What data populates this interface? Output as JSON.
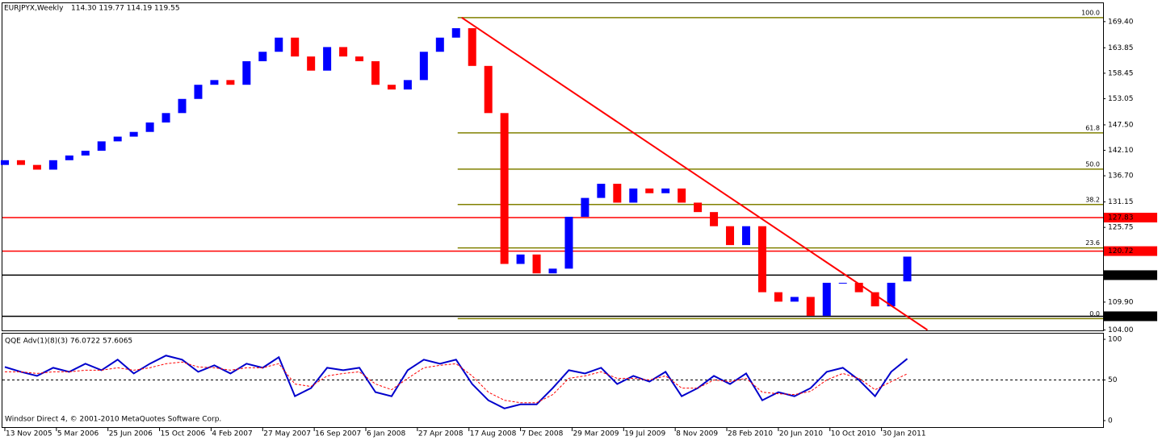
{
  "chart_data": [
    {
      "type": "candlestick",
      "title": "EURJPYX,Weekly",
      "subtitle": "114.30 119.77 114.19 119.55",
      "x": [
        0,
        5,
        10,
        15,
        20,
        25,
        30,
        35,
        40,
        45,
        50,
        55,
        60,
        65,
        70,
        75,
        80,
        85,
        90,
        95,
        100,
        105,
        110,
        115,
        120,
        125,
        130,
        135,
        140,
        145,
        150,
        155,
        160,
        165,
        170,
        175,
        180,
        185,
        190,
        195,
        200,
        205,
        210,
        215,
        220,
        225,
        230,
        235,
        240,
        245,
        250,
        255,
        260,
        265,
        270,
        275,
        280
      ],
      "open": [
        139,
        140,
        139,
        138,
        140,
        141,
        142,
        144,
        145,
        146,
        148,
        150,
        153,
        156,
        157,
        156,
        161,
        163,
        166,
        162,
        159,
        164,
        162,
        161,
        156,
        155,
        157,
        163,
        166,
        168,
        160,
        150,
        118,
        120,
        116,
        117,
        128,
        132,
        135,
        131,
        134,
        133,
        134,
        131,
        129,
        126,
        122,
        126,
        112,
        110,
        111,
        107,
        114,
        114,
        112,
        109,
        114.3
      ],
      "close": [
        140,
        139,
        138,
        140,
        141,
        142,
        144,
        145,
        146,
        148,
        150,
        153,
        156,
        157,
        156,
        161,
        163,
        166,
        162,
        159,
        164,
        162,
        161,
        156,
        155,
        157,
        163,
        166,
        168,
        160,
        150,
        118,
        120,
        116,
        117,
        128,
        132,
        135,
        131,
        134,
        133,
        134,
        131,
        129,
        126,
        122,
        126,
        112,
        110,
        111,
        107,
        114,
        114,
        112,
        109,
        114,
        119.55
      ],
      "up_color": "#0000ff",
      "down_color": "#ff0000",
      "xlim": [
        -0.75,
        340.75
      ],
      "xticks": [
        {
          "value": 0,
          "label": "13 Nov 2005"
        },
        {
          "value": 16,
          "label": "5 Mar 2006"
        },
        {
          "value": 32,
          "label": "25 Jun 2006"
        },
        {
          "value": 48,
          "label": "15 Oct 2006"
        },
        {
          "value": 64,
          "label": "4 Feb 2007"
        },
        {
          "value": 80,
          "label": "27 May 2007"
        },
        {
          "value": 96,
          "label": "16 Sep 2007"
        },
        {
          "value": 112,
          "label": "6 Jan 2008"
        },
        {
          "value": 128,
          "label": "27 Apr 2008"
        },
        {
          "value": 144,
          "label": "17 Aug 2008"
        },
        {
          "value": 160,
          "label": "7 Dec 2008"
        },
        {
          "value": 176,
          "label": "29 Mar 2009"
        },
        {
          "value": 192,
          "label": "19 Jul 2009"
        },
        {
          "value": 208,
          "label": "8 Nov 2009"
        },
        {
          "value": 224,
          "label": "28 Feb 2010"
        },
        {
          "value": 240,
          "label": "20 Jun 2010"
        },
        {
          "value": 256,
          "label": "10 Oct 2010"
        },
        {
          "value": 272,
          "label": "30 Jan 2011"
        }
      ],
      "ylim": [
        103.9,
        173.3
      ],
      "yticks": [
        {
          "value": 169.4,
          "label": "169.40"
        },
        163.85,
        158.45,
        153.05,
        {
          "value": 147.5,
          "label": "147.50"
        },
        {
          "value": 142.1,
          "label": "142.10"
        },
        {
          "value": 136.7,
          "label": "136.70"
        },
        131.15,
        125.75,
        {
          "value": 109.9,
          "label": "109.90"
        },
        {
          "value": 104,
          "label": "104.00"
        }
      ],
      "levels": [
        127.83,
        120.72,
        115.62,
        {
          "value": 106.9,
          "label": "106.90"
        }
      ],
      "level_colors": [
        "#ff0000",
        "#ff0000",
        "#000000",
        "#000000"
      ],
      "fib_start": 140.5,
      "fib_color": "#808000",
      "fib_levels": [
        {
          "value": 170.25,
          "label": "100.0"
        },
        {
          "value": 145.8,
          "label": "61.8"
        },
        {
          "value": 138.1,
          "label": "50.0"
        },
        {
          "value": 130.6,
          "label": "38.2"
        },
        {
          "value": 121.4,
          "label": "23.6"
        },
        {
          "value": 106.4,
          "label": "0.0"
        }
      ],
      "trendline": {
        "x": [
          141.75,
          286.25
        ],
        "y": [
          170.25,
          104.0
        ],
        "color": "#ff0000"
      }
    },
    {
      "type": "line",
      "title": "QQE Adv(1)(8)(3) 76.0722 57.6065",
      "footer": "Windsor Direct 4, © 2001-2010 MetaQuotes Software Corp.",
      "x": [
        0,
        5,
        10,
        15,
        20,
        25,
        30,
        35,
        40,
        45,
        50,
        55,
        60,
        65,
        70,
        75,
        80,
        85,
        90,
        95,
        100,
        105,
        110,
        115,
        120,
        125,
        130,
        135,
        140,
        145,
        150,
        155,
        160,
        165,
        170,
        175,
        180,
        185,
        190,
        195,
        200,
        205,
        210,
        215,
        220,
        225,
        230,
        235,
        240,
        245,
        250,
        255,
        260,
        265,
        270,
        275,
        280
      ],
      "series": [
        {
          "color": "#0000cc",
          "values": [
            66,
            60,
            55,
            65,
            60,
            70,
            62,
            75,
            58,
            70,
            80,
            75,
            60,
            68,
            58,
            70,
            65,
            78,
            30,
            40,
            65,
            62,
            65,
            35,
            30,
            62,
            75,
            70,
            75,
            45,
            25,
            15,
            20,
            20,
            40,
            62,
            58,
            65,
            45,
            55,
            48,
            60,
            30,
            40,
            55,
            45,
            58,
            25,
            35,
            30,
            40,
            60,
            65,
            50,
            30,
            60,
            76.0722
          ]
        },
        {
          "color": "#ff0000",
          "dashed": true,
          "values": [
            60,
            60,
            58,
            60,
            60,
            62,
            62,
            65,
            62,
            65,
            70,
            72,
            66,
            65,
            62,
            65,
            65,
            70,
            45,
            42,
            55,
            58,
            60,
            45,
            38,
            52,
            65,
            68,
            70,
            55,
            35,
            25,
            22,
            22,
            32,
            52,
            55,
            60,
            52,
            52,
            50,
            55,
            40,
            40,
            50,
            48,
            52,
            35,
            33,
            32,
            36,
            50,
            58,
            52,
            38,
            48,
            57.6065
          ]
        }
      ],
      "xlim": [
        -0.75,
        340.75
      ],
      "ylim": [
        -8,
        107
      ],
      "yticks": [
        0,
        50,
        100
      ],
      "level": 50
    }
  ]
}
